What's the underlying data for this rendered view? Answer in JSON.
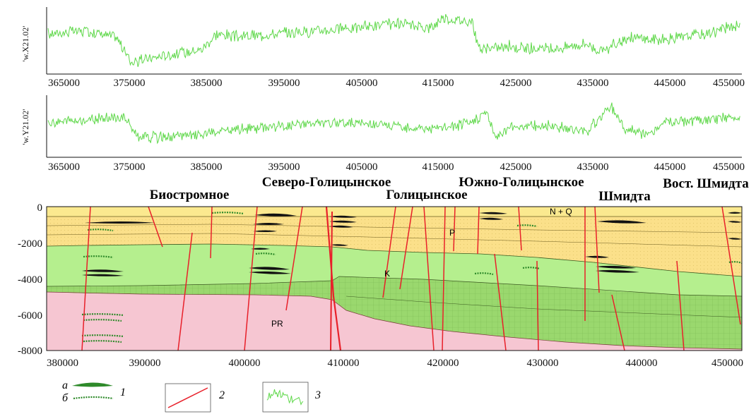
{
  "colors": {
    "curve": "#5fd84a",
    "fault": "#e8202a",
    "ng_layer": "#fbe98f",
    "paleogene": "#fbe08a",
    "cretaceous": "#b5ef8e",
    "cretaceous_lower": "#9ad86e",
    "basement": "#f6c6d2",
    "lens": "#111111"
  },
  "profiles": [
    {
      "ylabel": "'w.X21.02'",
      "xlim": [
        365000,
        455000
      ],
      "ticks": [
        "365000",
        "375000",
        "385000",
        "395000",
        "405000",
        "415000",
        "425000",
        "435000",
        "445000",
        "455000"
      ]
    },
    {
      "ylabel": "'w.Y21.02'",
      "xlim": [
        365000,
        455000
      ],
      "ticks": [
        "365000",
        "375000",
        "385000",
        "395000",
        "405000",
        "415000",
        "425000",
        "435000",
        "445000",
        "455000"
      ]
    }
  ],
  "section": {
    "xlim": [
      380000,
      450000
    ],
    "ylim": [
      -8000,
      0
    ],
    "xticks": [
      "380000",
      "390000",
      "400000",
      "410000",
      "420000",
      "430000",
      "440000",
      "450000"
    ],
    "yticks": [
      "0",
      "-2000",
      "-4000",
      "-6000",
      "-8000"
    ],
    "field_names": [
      "Биостромное",
      "Северо-Голицынское",
      "Голицынское",
      "Южно-Голицынское",
      "Шмидта",
      "Вост. Шмидта"
    ],
    "unit_labels": [
      "N + Q",
      "P",
      "K",
      "PR"
    ]
  },
  "legend": {
    "items": [
      {
        "letters": [
          "а",
          "б"
        ],
        "number": "1"
      },
      {
        "number": "2"
      },
      {
        "number": "3"
      }
    ]
  },
  "chart_data": [
    {
      "type": "line",
      "title": "",
      "ylabel": "'w.X21.02'",
      "xlim": [
        365000,
        455000
      ],
      "x": [
        365000,
        370000,
        374000,
        376000,
        380000,
        385000,
        387000,
        390000,
        395000,
        400000,
        405000,
        410000,
        415000,
        416000,
        420000,
        421000,
        425000,
        430000,
        435000,
        437000,
        440000,
        445000,
        450000,
        455000
      ],
      "series": [
        {
          "name": "",
          "values": [
            0.6,
            0.65,
            0.55,
            0.15,
            0.25,
            0.35,
            0.6,
            0.55,
            0.6,
            0.65,
            0.7,
            0.75,
            0.7,
            0.85,
            0.8,
            0.35,
            0.4,
            0.35,
            0.45,
            0.3,
            0.55,
            0.5,
            0.6,
            0.75
          ]
        }
      ]
    },
    {
      "type": "line",
      "title": "",
      "ylabel": "'w.Y21.02'",
      "xlim": [
        365000,
        455000
      ],
      "x": [
        365000,
        370000,
        375000,
        377000,
        380000,
        385000,
        390000,
        395000,
        400000,
        405000,
        410000,
        415000,
        420000,
        422000,
        423000,
        425000,
        430000,
        435000,
        438000,
        440000,
        443000,
        445000,
        450000,
        455000
      ],
      "series": [
        {
          "name": "",
          "values": [
            0.55,
            0.6,
            0.65,
            0.3,
            0.3,
            0.35,
            0.45,
            0.5,
            0.55,
            0.55,
            0.5,
            0.45,
            0.55,
            0.75,
            0.3,
            0.5,
            0.5,
            0.4,
            0.85,
            0.45,
            0.35,
            0.55,
            0.6,
            0.65
          ]
        }
      ]
    }
  ]
}
